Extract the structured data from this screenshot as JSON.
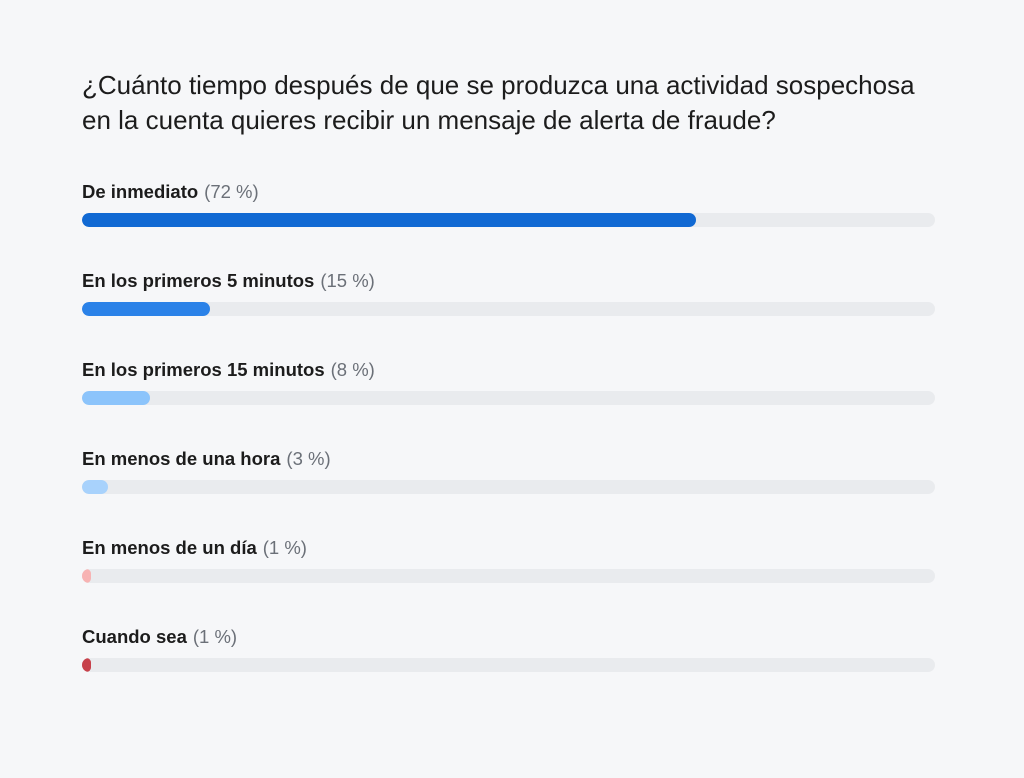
{
  "chart_data": {
    "type": "bar",
    "title": "¿Cuánto tiempo después de que se produzca una actividad sospechosa en la cuenta quieres recibir un mensaje de alerta de fraude?",
    "categories": [
      "De inmediato",
      "En los primeros 5 minutos",
      "En los primeros 15 minutos",
      "En menos de una hora",
      "En menos de un día",
      "Cuando sea"
    ],
    "values": [
      72,
      15,
      8,
      3,
      1,
      1
    ],
    "value_labels": [
      "(72 %)",
      "(15 %)",
      "(8 %)",
      "(3 %)",
      "(1 %)",
      "(1 %)"
    ],
    "colors": [
      "#1169d3",
      "#2b82e8",
      "#8cc4fb",
      "#a8d2fc",
      "#f7b3b3",
      "#c7414b"
    ],
    "track_color": "#e9ebee",
    "xlim": [
      0,
      100
    ]
  }
}
